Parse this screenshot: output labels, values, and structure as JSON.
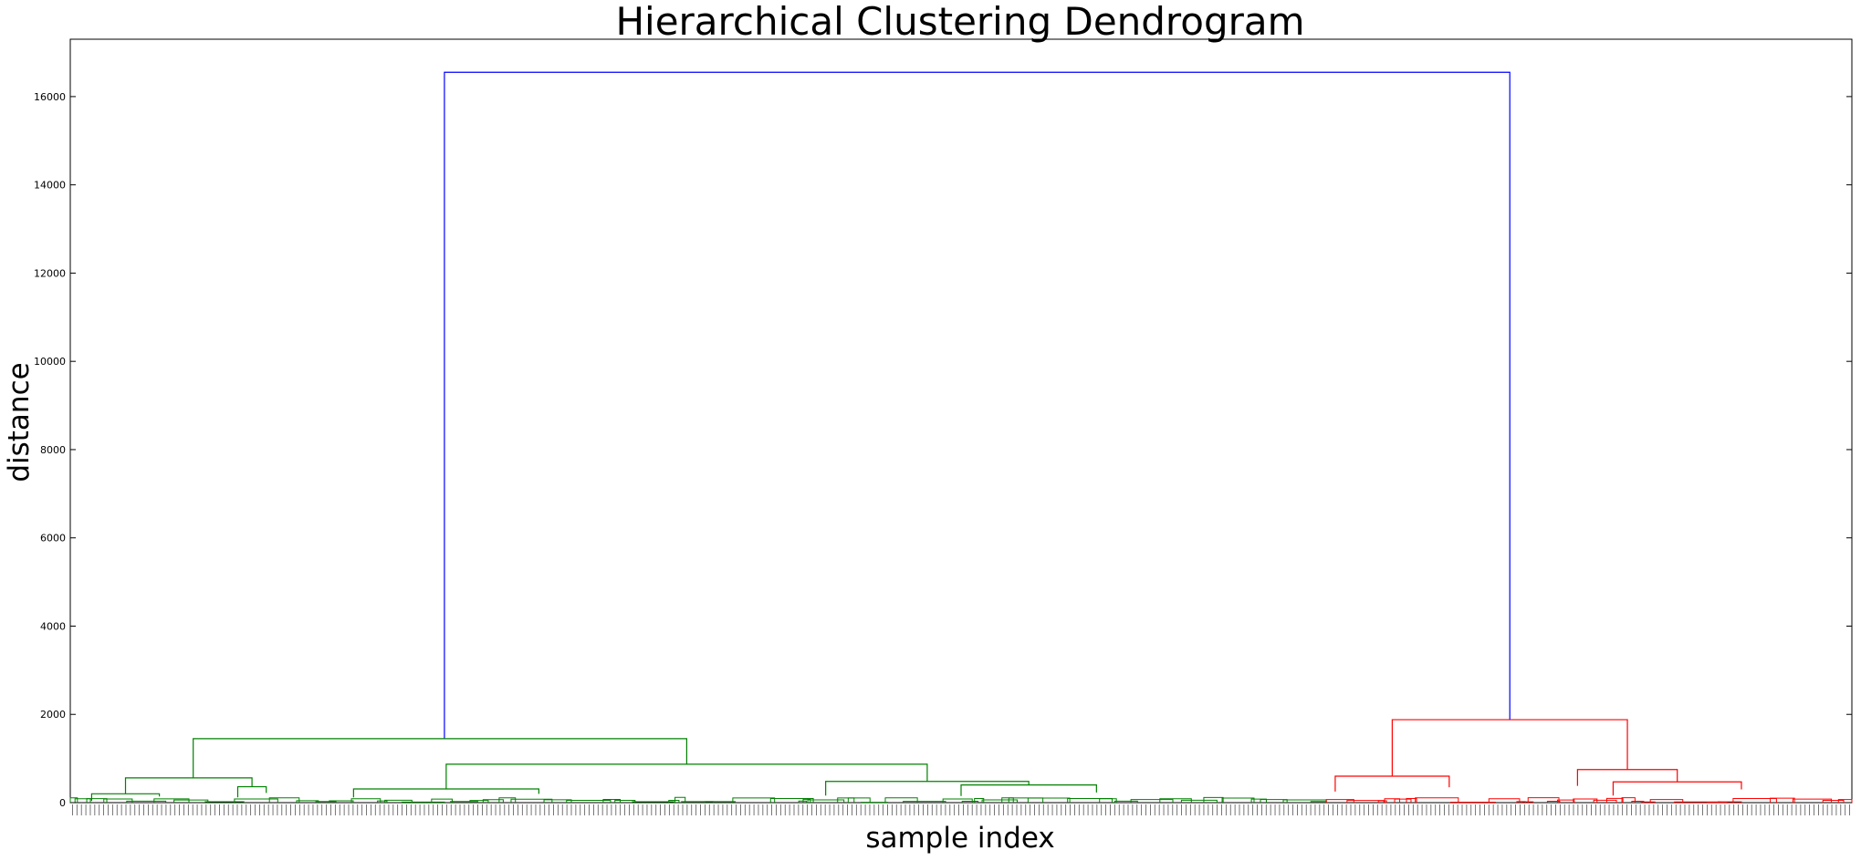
{
  "chart_data": {
    "type": "dendrogram",
    "title": "Hierarchical Clustering Dendrogram",
    "xlabel": "sample index",
    "ylabel": "distance",
    "ylim": [
      0,
      17300
    ],
    "yticks": [
      0,
      2000,
      4000,
      6000,
      8000,
      10000,
      12000,
      14000,
      16000
    ],
    "ytick_labels": [
      "0",
      "2000",
      "4000",
      "6000",
      "8000",
      "10000",
      "12000",
      "14000",
      "16000"
    ],
    "grid": false,
    "legend": "none",
    "leaf_labels_legible": false,
    "leaf_count_estimate": 400,
    "colors": {
      "root": "#0000ff",
      "cluster_1": "#008000",
      "cluster_2": "#ff0000",
      "axes": "#000000"
    },
    "leaf_range": [
      0,
      100
    ],
    "links": [
      {
        "id": "root",
        "x_left": 21.0,
        "x_right": 80.8,
        "y": 16550,
        "y_left_child": 1450,
        "y_right_child": 1880,
        "color": "#0000ff"
      },
      {
        "id": "green-top",
        "x_left": 6.9,
        "x_right": 34.6,
        "y": 1450,
        "y_left_child": 560,
        "y_right_child": 870,
        "color": "#008000"
      },
      {
        "id": "green-a",
        "x_left": 3.1,
        "x_right": 10.2,
        "y": 560,
        "y_left_child": 200,
        "y_right_child": 360,
        "color": "#008000"
      },
      {
        "id": "green-a1",
        "x_left": 1.2,
        "x_right": 5.0,
        "y": 200,
        "y_left_child": 40,
        "y_right_child": 140,
        "color": "#008000"
      },
      {
        "id": "green-a2",
        "x_left": 9.4,
        "x_right": 11.0,
        "y": 360,
        "y_left_child": 120,
        "y_right_child": 220,
        "color": "#008000"
      },
      {
        "id": "green-b",
        "x_left": 21.1,
        "x_right": 48.1,
        "y": 870,
        "y_left_child": 310,
        "y_right_child": 480,
        "color": "#008000"
      },
      {
        "id": "green-b1",
        "x_left": 15.9,
        "x_right": 26.3,
        "y": 310,
        "y_left_child": 120,
        "y_right_child": 200,
        "color": "#008000"
      },
      {
        "id": "green-b2",
        "x_left": 42.4,
        "x_right": 53.8,
        "y": 480,
        "y_left_child": 160,
        "y_right_child": 400,
        "color": "#008000"
      },
      {
        "id": "green-b3",
        "x_left": 50.0,
        "x_right": 57.6,
        "y": 400,
        "y_left_child": 150,
        "y_right_child": 230,
        "color": "#008000"
      },
      {
        "id": "red-top",
        "x_left": 74.2,
        "x_right": 87.4,
        "y": 1880,
        "y_left_child": 600,
        "y_right_child": 750,
        "color": "#ff0000"
      },
      {
        "id": "red-a",
        "x_left": 71.0,
        "x_right": 77.4,
        "y": 600,
        "y_left_child": 250,
        "y_right_child": 350,
        "color": "#ff0000"
      },
      {
        "id": "red-b",
        "x_left": 84.6,
        "x_right": 90.2,
        "y": 750,
        "y_left_child": 380,
        "y_right_child": 470,
        "color": "#ff0000"
      },
      {
        "id": "red-b1",
        "x_left": 86.6,
        "x_right": 93.8,
        "y": 470,
        "y_left_child": 160,
        "y_right_child": 300,
        "color": "#ff0000"
      }
    ]
  }
}
